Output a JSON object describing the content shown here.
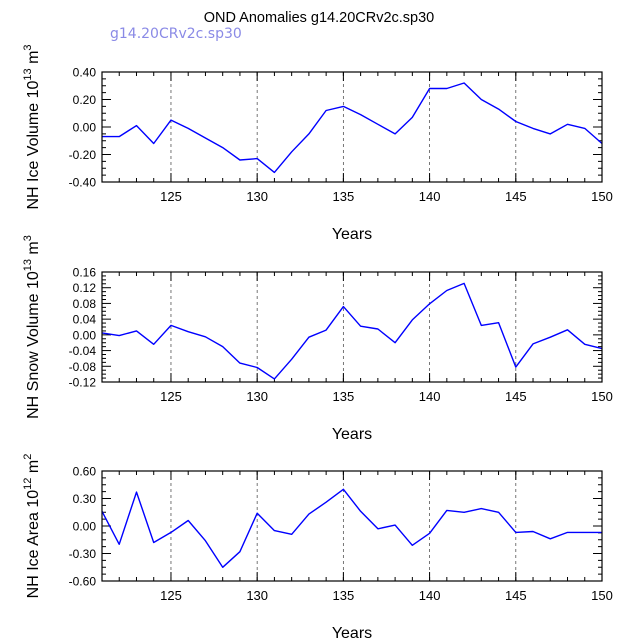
{
  "title": "OND Anomalies g14.20CRv2c.sp30",
  "subtitle": "g14.20CRv2c.sp30",
  "colors": {
    "line": "#0000ff",
    "subtitle": "#8a8ae6",
    "axis": "#000000",
    "grid": "#555555"
  },
  "chart_data": [
    {
      "type": "line",
      "ylabel": "NH Ice Volume",
      "yunit": "10",
      "yunit_exp": "13",
      "yunit_tail": "m",
      "yunit_tail_exp": "3",
      "xlabel": "Years",
      "xlim": [
        121,
        150
      ],
      "ylim": [
        -0.4,
        0.4
      ],
      "xticks": [
        "125",
        "130",
        "135",
        "140",
        "145",
        "150"
      ],
      "xtick_values": [
        125,
        130,
        135,
        140,
        145,
        150
      ],
      "yticks": [
        "0.40",
        "0.20",
        "0.00",
        "-0.20",
        "-0.40"
      ],
      "ytick_values": [
        0.4,
        0.2,
        0.0,
        -0.2,
        -0.4
      ],
      "grid": "vertical dashed at major x ticks",
      "x": [
        121,
        122,
        123,
        124,
        125,
        126,
        127,
        128,
        129,
        130,
        131,
        132,
        133,
        134,
        135,
        136,
        137,
        138,
        139,
        140,
        141,
        142,
        143,
        144,
        145,
        146,
        147,
        148,
        149,
        150
      ],
      "values": [
        -0.07,
        -0.07,
        0.01,
        -0.12,
        0.05,
        -0.01,
        -0.08,
        -0.15,
        -0.24,
        -0.23,
        -0.33,
        -0.18,
        -0.05,
        0.12,
        0.15,
        0.09,
        0.02,
        -0.05,
        0.07,
        0.28,
        0.28,
        0.32,
        0.2,
        0.13,
        0.04,
        -0.01,
        -0.05,
        0.02,
        -0.01,
        -0.12
      ]
    },
    {
      "type": "line",
      "ylabel": "NH Snow Volume",
      "yunit": "10",
      "yunit_exp": "13",
      "yunit_tail": "m",
      "yunit_tail_exp": "3",
      "xlabel": "Years",
      "xlim": [
        121,
        150
      ],
      "ylim": [
        -0.12,
        0.16
      ],
      "xticks": [
        "125",
        "130",
        "135",
        "140",
        "145",
        "150"
      ],
      "xtick_values": [
        125,
        130,
        135,
        140,
        145,
        150
      ],
      "yticks": [
        "0.16",
        "0.12",
        "0.08",
        "0.04",
        "0.00",
        "-0.04",
        "-0.08",
        "-0.12"
      ],
      "ytick_values": [
        0.16,
        0.12,
        0.08,
        0.04,
        0.0,
        -0.04,
        -0.08,
        -0.12
      ],
      "grid": "vertical dashed at major x ticks",
      "x": [
        121,
        122,
        123,
        124,
        125,
        126,
        127,
        128,
        129,
        130,
        131,
        132,
        133,
        134,
        135,
        136,
        137,
        138,
        139,
        140,
        141,
        142,
        143,
        144,
        145,
        146,
        147,
        148,
        149,
        150
      ],
      "values": [
        0.005,
        -0.002,
        0.01,
        -0.024,
        0.024,
        0.008,
        -0.005,
        -0.03,
        -0.072,
        -0.083,
        -0.112,
        -0.062,
        -0.006,
        0.012,
        0.072,
        0.022,
        0.015,
        -0.02,
        0.038,
        0.079,
        0.113,
        0.131,
        0.024,
        0.031,
        -0.082,
        -0.023,
        -0.006,
        0.013,
        -0.024,
        -0.035
      ]
    },
    {
      "type": "line",
      "ylabel": "NH Ice Area",
      "yunit": "10",
      "yunit_exp": "12",
      "yunit_tail": "m",
      "yunit_tail_exp": "2",
      "xlabel": "Years",
      "xlim": [
        121,
        150
      ],
      "ylim": [
        -0.6,
        0.6
      ],
      "xticks": [
        "125",
        "130",
        "135",
        "140",
        "145",
        "150"
      ],
      "xtick_values": [
        125,
        130,
        135,
        140,
        145,
        150
      ],
      "yticks": [
        "0.60",
        "0.30",
        "0.00",
        "-0.30",
        "-0.60"
      ],
      "ytick_values": [
        0.6,
        0.3,
        0.0,
        -0.3,
        -0.6
      ],
      "grid": "vertical dashed at major x ticks",
      "x": [
        121,
        122,
        123,
        124,
        125,
        126,
        127,
        128,
        129,
        130,
        131,
        132,
        133,
        134,
        135,
        136,
        137,
        138,
        139,
        140,
        141,
        142,
        143,
        144,
        145,
        146,
        147,
        148,
        149,
        150
      ],
      "values": [
        0.16,
        -0.2,
        0.37,
        -0.18,
        -0.07,
        0.06,
        -0.16,
        -0.45,
        -0.28,
        0.14,
        -0.05,
        -0.09,
        0.13,
        0.26,
        0.4,
        0.16,
        -0.03,
        0.01,
        -0.21,
        -0.08,
        0.17,
        0.15,
        0.19,
        0.15,
        -0.07,
        -0.06,
        -0.14,
        -0.07,
        -0.07,
        -0.07
      ]
    }
  ]
}
